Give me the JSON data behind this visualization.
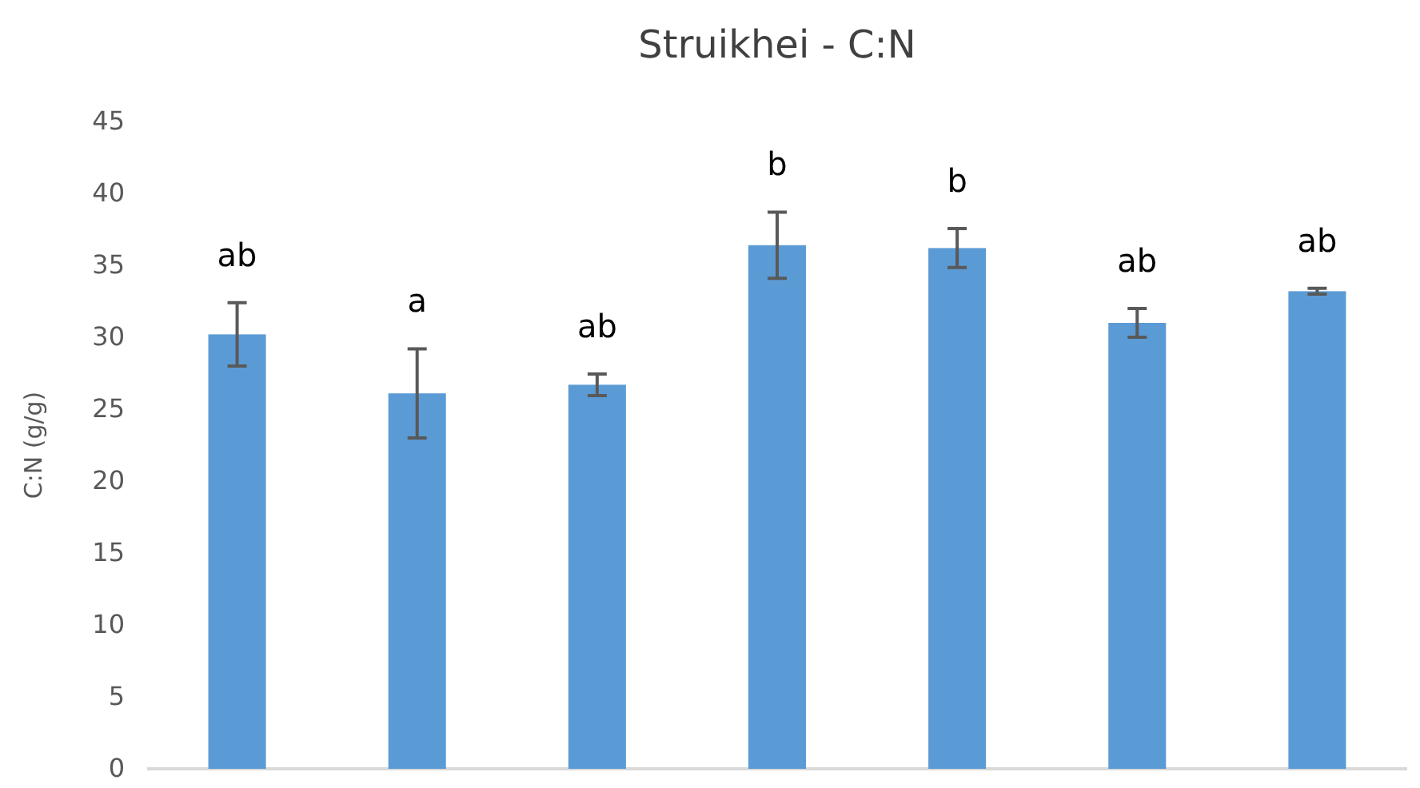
{
  "chart_data": {
    "type": "bar",
    "title": "Struikhei - C:N",
    "ylabel": "C:N (g/g)",
    "categories": [
      null,
      null,
      null,
      null,
      null,
      null,
      null
    ],
    "values": [
      30.2,
      26.1,
      26.7,
      36.4,
      36.2,
      31.0,
      33.2
    ],
    "errors": [
      2.2,
      3.1,
      0.75,
      2.3,
      1.35,
      1.0,
      0.2
    ],
    "color": "#5b9bd5",
    "ylim": [
      0,
      45
    ],
    "yticks": [
      0,
      5,
      10,
      15,
      20,
      25,
      30,
      35,
      40,
      45
    ],
    "annotations": [
      "ab",
      "a",
      "ab",
      "b",
      "b",
      "ab",
      "ab"
    ]
  }
}
